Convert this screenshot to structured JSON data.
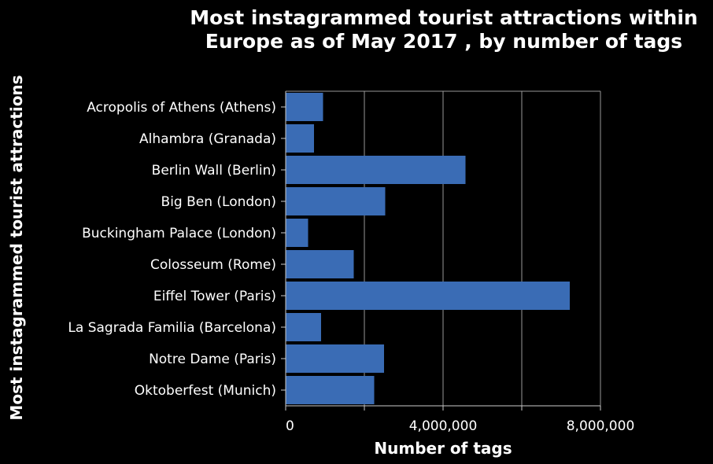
{
  "chart_data": {
    "type": "bar",
    "orientation": "horizontal",
    "title": [
      "Most instagrammed tourist attractions within",
      "Europe as of May 2017 , by number of tags"
    ],
    "xlabel": "Number of tags",
    "ylabel": "Most instagrammed tourist attractions",
    "categories": [
      "Acropolis of Athens (Athens)",
      "Alhambra (Granada)",
      "Berlin Wall (Berlin)",
      "Big Ben (London)",
      "Buckingham Palace (London)",
      "Colosseum (Rome)",
      "Eiffel Tower (Paris)",
      "La Sagrada Familia (Barcelona)",
      "Notre Dame (Paris)",
      "Oktoberfest (Munich)"
    ],
    "values": [
      950000,
      720000,
      4570000,
      2530000,
      570000,
      1730000,
      7220000,
      900000,
      2500000,
      2250000
    ],
    "xlim": [
      0,
      8000000
    ],
    "xticks": [
      0,
      4000000,
      8000000
    ],
    "xtick_labels": [
      "0",
      "4,000,000",
      "8,000,000"
    ],
    "grid": true,
    "colors": {
      "background": "#000000",
      "bar": "#3a6cb5",
      "text": "#ffffff",
      "grid": "#999999",
      "axis": "#cccccc"
    }
  }
}
